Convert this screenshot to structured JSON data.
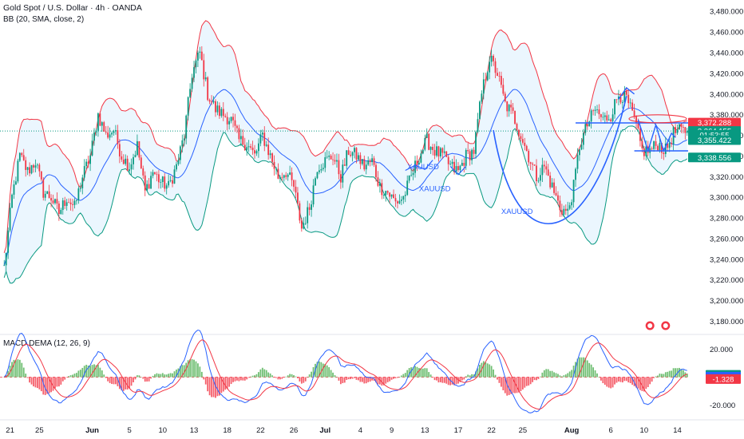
{
  "header": {
    "title": "Gold Spot / U.S. Dollar · 4h · OANDA",
    "bb_label": "BB (20, SMA, close, 2)",
    "macd_label": "MACD DEMA (12, 26, 9)"
  },
  "chart_data": {
    "type": "candlestick",
    "symbol": "XAUUSD",
    "price_axis": {
      "ticks": [
        3180,
        3200,
        3220,
        3240,
        3260,
        3280,
        3300,
        3320,
        3340,
        3360,
        3380,
        3400,
        3420,
        3440,
        3460,
        3480
      ],
      "tick_labels": [
        "3,180.000",
        "3,200.000",
        "3,220.000",
        "3,240.000",
        "3,260.000",
        "3,280.000",
        "3,300.000",
        "3,320.000",
        "3,340.000",
        "3,360.000",
        "3,380.000",
        "3,400.000",
        "3,420.000",
        "3,440.000",
        "3,460.000",
        "3,480.000"
      ],
      "ylim": [
        3168,
        3491
      ]
    },
    "date_axis": {
      "labels": [
        "21",
        "25",
        "Jun",
        "5",
        "10",
        "13",
        "18",
        "22",
        "26",
        "Jul",
        "4",
        "9",
        "13",
        "17",
        "22",
        "25",
        "Aug",
        "6",
        "10",
        "14"
      ],
      "label_index": [
        3,
        18,
        45,
        64,
        81,
        97,
        114,
        131,
        148,
        164,
        182,
        198,
        215,
        232,
        249,
        265,
        290,
        310,
        327,
        344
      ],
      "bold": [
        "Jun",
        "Jul",
        "Aug"
      ]
    },
    "price_tags": [
      {
        "value": 3372.288,
        "label": "3,372.288",
        "color": "#f23645"
      },
      {
        "value": 3364.155,
        "label": "3,364.155",
        "color": "#089981"
      },
      {
        "value": 3360.5,
        "label": "01:53:55",
        "color": "#089981"
      },
      {
        "value": 3355.422,
        "label": "3,355.422",
        "color": "#089981"
      },
      {
        "value": 3338.556,
        "label": "3,338.556",
        "color": "#089981"
      }
    ],
    "current_price": 3364.155,
    "bollinger": {
      "period": 20,
      "type": "SMA",
      "source": "close",
      "stddev": 2,
      "upper_color": "#f23645",
      "lower_color": "#089981",
      "basis_color": "#2962ff",
      "fill_color": "#e3f2fd"
    },
    "close_anchors": [
      [
        0,
        3232
      ],
      [
        4,
        3300
      ],
      [
        8,
        3340
      ],
      [
        12,
        3325
      ],
      [
        16,
        3335
      ],
      [
        20,
        3305
      ],
      [
        24,
        3300
      ],
      [
        28,
        3285
      ],
      [
        32,
        3300
      ],
      [
        36,
        3290
      ],
      [
        40,
        3320
      ],
      [
        44,
        3340
      ],
      [
        48,
        3380
      ],
      [
        52,
        3360
      ],
      [
        56,
        3365
      ],
      [
        60,
        3340
      ],
      [
        64,
        3330
      ],
      [
        68,
        3350
      ],
      [
        72,
        3305
      ],
      [
        76,
        3325
      ],
      [
        80,
        3315
      ],
      [
        84,
        3310
      ],
      [
        88,
        3330
      ],
      [
        92,
        3360
      ],
      [
        96,
        3420
      ],
      [
        100,
        3440
      ],
      [
        104,
        3400
      ],
      [
        108,
        3385
      ],
      [
        112,
        3380
      ],
      [
        116,
        3375
      ],
      [
        120,
        3355
      ],
      [
        124,
        3352
      ],
      [
        128,
        3340
      ],
      [
        132,
        3360
      ],
      [
        136,
        3340
      ],
      [
        140,
        3320
      ],
      [
        144,
        3325
      ],
      [
        148,
        3310
      ],
      [
        152,
        3270
      ],
      [
        156,
        3290
      ],
      [
        160,
        3330
      ],
      [
        164,
        3335
      ],
      [
        168,
        3340
      ],
      [
        172,
        3320
      ],
      [
        176,
        3345
      ],
      [
        180,
        3340
      ],
      [
        184,
        3330
      ],
      [
        188,
        3335
      ],
      [
        192,
        3310
      ],
      [
        196,
        3305
      ],
      [
        200,
        3295
      ],
      [
        204,
        3300
      ],
      [
        208,
        3320
      ],
      [
        212,
        3340
      ],
      [
        216,
        3355
      ],
      [
        220,
        3345
      ],
      [
        224,
        3340
      ],
      [
        228,
        3330
      ],
      [
        232,
        3325
      ],
      [
        236,
        3340
      ],
      [
        240,
        3345
      ],
      [
        244,
        3400
      ],
      [
        248,
        3435
      ],
      [
        252,
        3420
      ],
      [
        256,
        3390
      ],
      [
        260,
        3380
      ],
      [
        264,
        3360
      ],
      [
        268,
        3340
      ],
      [
        272,
        3320
      ],
      [
        276,
        3330
      ],
      [
        280,
        3310
      ],
      [
        284,
        3290
      ],
      [
        288,
        3285
      ],
      [
        291,
        3310
      ],
      [
        294,
        3350
      ],
      [
        298,
        3370
      ],
      [
        302,
        3385
      ],
      [
        306,
        3375
      ],
      [
        310,
        3380
      ],
      [
        314,
        3400
      ],
      [
        318,
        3395
      ],
      [
        322,
        3375
      ],
      [
        326,
        3345
      ],
      [
        330,
        3345
      ],
      [
        334,
        3352
      ],
      [
        338,
        3345
      ],
      [
        342,
        3362
      ],
      [
        344,
        3364
      ]
    ],
    "drawings": {
      "labels": [
        {
          "text": "XAUUSD",
          "index": 206,
          "price": 3327
        },
        {
          "text": "XAUUSD",
          "index": 212,
          "price": 3306
        },
        {
          "text": "XAUUSD",
          "index": 254,
          "price": 3284
        }
      ],
      "horizontal_levels": [
        3372,
        3345
      ],
      "ellipse_price": 3376,
      "line_color": "#2962ff"
    },
    "macd": {
      "name": "MACD DEMA (12, 26, 9)",
      "fast": 12,
      "slow": 26,
      "signal": 9,
      "ticks": [
        20,
        -20
      ],
      "tick_labels": [
        "20.000",
        "-20.000"
      ],
      "ylim": [
        -30,
        30
      ],
      "tags": [
        {
          "value": 1.676,
          "label": "1.676",
          "color": "#089981"
        },
        {
          "value": 0.349,
          "label": "0.349",
          "color": "#2962ff"
        },
        {
          "value": -1.328,
          "label": "-1.328",
          "color": "#f23645"
        }
      ],
      "macd_color": "#2962ff",
      "signal_color": "#f23645"
    }
  }
}
